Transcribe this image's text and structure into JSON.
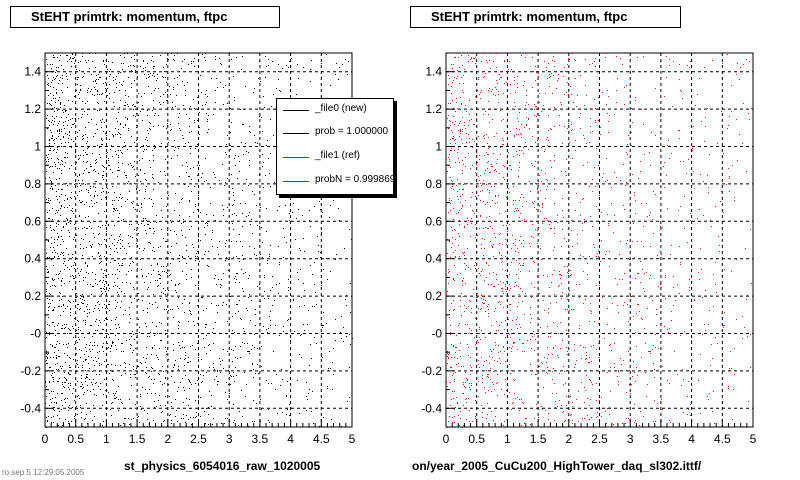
{
  "colors": {
    "new": "#000000",
    "ref": "#ff0000",
    "grid": "#000000",
    "frame": "#000000"
  },
  "panels": [
    {
      "title": "StEHT primtrk: momentum, ftpc",
      "file_label": "st_physics_6054016_raw_1020005",
      "legend": [
        {
          "text": "_file0 (new)",
          "color": "#000000"
        },
        {
          "text": "prob = 1.000000",
          "color": "#000000"
        },
        {
          "text": "_file1 (ref)",
          "color": "#ff0000"
        },
        {
          "text": "probN = 0.999869",
          "color": "#ff0000"
        }
      ]
    },
    {
      "title": "StEHT primtrk: momentum, ftpc",
      "file_label": "on/year_2005_CuCu200_HighTower_daq_sl302.ittf/"
    }
  ],
  "footer_stub": "ro sep 5 12:29:05 2005",
  "chart_data": [
    {
      "type": "scatter",
      "title": "StEHT primtrk: momentum, ftpc",
      "xlabel": "st_physics_6054016_raw_1020005",
      "ylabel": "",
      "xlim": [
        0,
        5
      ],
      "ylim": [
        -0.5,
        1.5
      ],
      "xticks": [
        "0",
        "0.5",
        "1",
        "1.5",
        "2",
        "2.5",
        "3",
        "3.5",
        "4",
        "4.5",
        "5"
      ],
      "yticks": [
        "-0.4",
        "-0.2",
        "-0",
        "0.2",
        "0.4",
        "0.6",
        "0.8",
        "1",
        "1.2",
        "1.4"
      ],
      "grid": true,
      "legend_position": "top-right",
      "series": [
        {
          "name": "_file0 (new)",
          "color": "#000000",
          "density": "high near x=0, decreasing with x, roughly uniform in y"
        }
      ]
    },
    {
      "type": "scatter",
      "title": "StEHT primtrk: momentum, ftpc",
      "xlabel": "on/year_2005_CuCu200_HighTower_daq_sl302.ittf/",
      "ylabel": "",
      "xlim": [
        0,
        5
      ],
      "ylim": [
        -0.5,
        1.5
      ],
      "xticks": [
        "0",
        "0.5",
        "1",
        "1.5",
        "2",
        "2.5",
        "3",
        "3.5",
        "4",
        "4.5",
        "5"
      ],
      "yticks": [
        "-0.4",
        "-0.2",
        "-0",
        "0.2",
        "0.4",
        "0.6",
        "0.8",
        "1",
        "1.2",
        "1.4"
      ],
      "grid": true,
      "series": [
        {
          "name": "_file1 (ref)",
          "color": "#ff0000",
          "density": "high near x=0, decreasing with x, roughly uniform in y"
        }
      ]
    }
  ]
}
